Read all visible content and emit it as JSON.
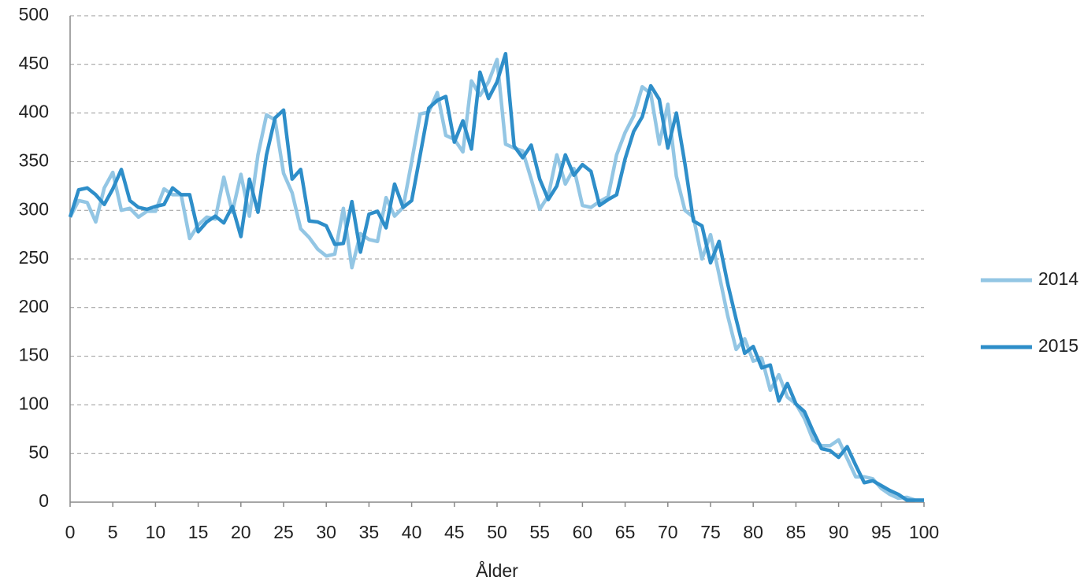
{
  "chart_data": {
    "type": "line",
    "xlabel": "Ålder",
    "x": [
      0,
      1,
      2,
      3,
      4,
      5,
      6,
      7,
      8,
      9,
      10,
      11,
      12,
      13,
      14,
      15,
      16,
      17,
      18,
      19,
      20,
      21,
      22,
      23,
      24,
      25,
      26,
      27,
      28,
      29,
      30,
      31,
      32,
      33,
      34,
      35,
      36,
      37,
      38,
      39,
      40,
      41,
      42,
      43,
      44,
      45,
      46,
      47,
      48,
      49,
      50,
      51,
      52,
      53,
      54,
      55,
      56,
      57,
      58,
      59,
      60,
      61,
      62,
      63,
      64,
      65,
      66,
      67,
      68,
      69,
      70,
      71,
      72,
      73,
      74,
      75,
      76,
      77,
      78,
      79,
      80,
      81,
      82,
      83,
      84,
      85,
      86,
      87,
      88,
      89,
      90,
      91,
      92,
      93,
      94,
      95,
      96,
      97,
      98,
      99,
      100
    ],
    "series": [
      {
        "name": "2014",
        "color": "#93c6e4",
        "values": [
          293,
          310,
          308,
          288,
          323,
          339,
          300,
          302,
          293,
          299,
          299,
          322,
          316,
          316,
          271,
          285,
          293,
          291,
          334,
          298,
          337,
          294,
          357,
          398,
          393,
          338,
          318,
          281,
          272,
          260,
          253,
          255,
          302,
          241,
          276,
          270,
          268,
          313,
          294,
          303,
          350,
          399,
          401,
          421,
          377,
          373,
          360,
          433,
          418,
          432,
          455,
          368,
          364,
          361,
          332,
          301,
          315,
          357,
          327,
          343,
          305,
          303,
          309,
          314,
          357,
          380,
          397,
          427,
          420,
          368,
          409,
          335,
          300,
          293,
          250,
          275,
          234,
          192,
          157,
          168,
          145,
          148,
          115,
          131,
          108,
          101,
          86,
          64,
          58,
          58,
          64,
          45,
          26,
          26,
          24,
          14,
          8,
          4,
          5,
          2,
          2
        ]
      },
      {
        "name": "2015",
        "color": "#2e8ec9",
        "values": [
          293,
          321,
          323,
          316,
          306,
          322,
          342,
          310,
          303,
          301,
          304,
          306,
          323,
          316,
          316,
          278,
          288,
          294,
          287,
          304,
          273,
          332,
          298,
          357,
          395,
          403,
          332,
          342,
          289,
          288,
          284,
          265,
          266,
          309,
          257,
          296,
          299,
          282,
          327,
          303,
          310,
          357,
          405,
          413,
          417,
          370,
          392,
          363,
          442,
          415,
          432,
          461,
          366,
          354,
          367,
          332,
          311,
          325,
          357,
          336,
          347,
          340,
          305,
          311,
          316,
          353,
          381,
          396,
          428,
          414,
          364,
          400,
          348,
          289,
          284,
          246,
          268,
          225,
          188,
          153,
          160,
          138,
          141,
          104,
          122,
          101,
          93,
          73,
          55,
          53,
          46,
          57,
          38,
          20,
          22,
          17,
          12,
          8,
          2,
          2,
          2
        ]
      }
    ],
    "xlim": [
      0,
      100
    ],
    "xticks": [
      0,
      5,
      10,
      15,
      20,
      25,
      30,
      35,
      40,
      45,
      50,
      55,
      60,
      65,
      70,
      75,
      80,
      85,
      90,
      95,
      100
    ],
    "ylim": [
      0,
      500
    ],
    "yticks": [
      0,
      50,
      100,
      150,
      200,
      250,
      300,
      350,
      400,
      450,
      500
    ],
    "grid": true,
    "legend": "right"
  }
}
